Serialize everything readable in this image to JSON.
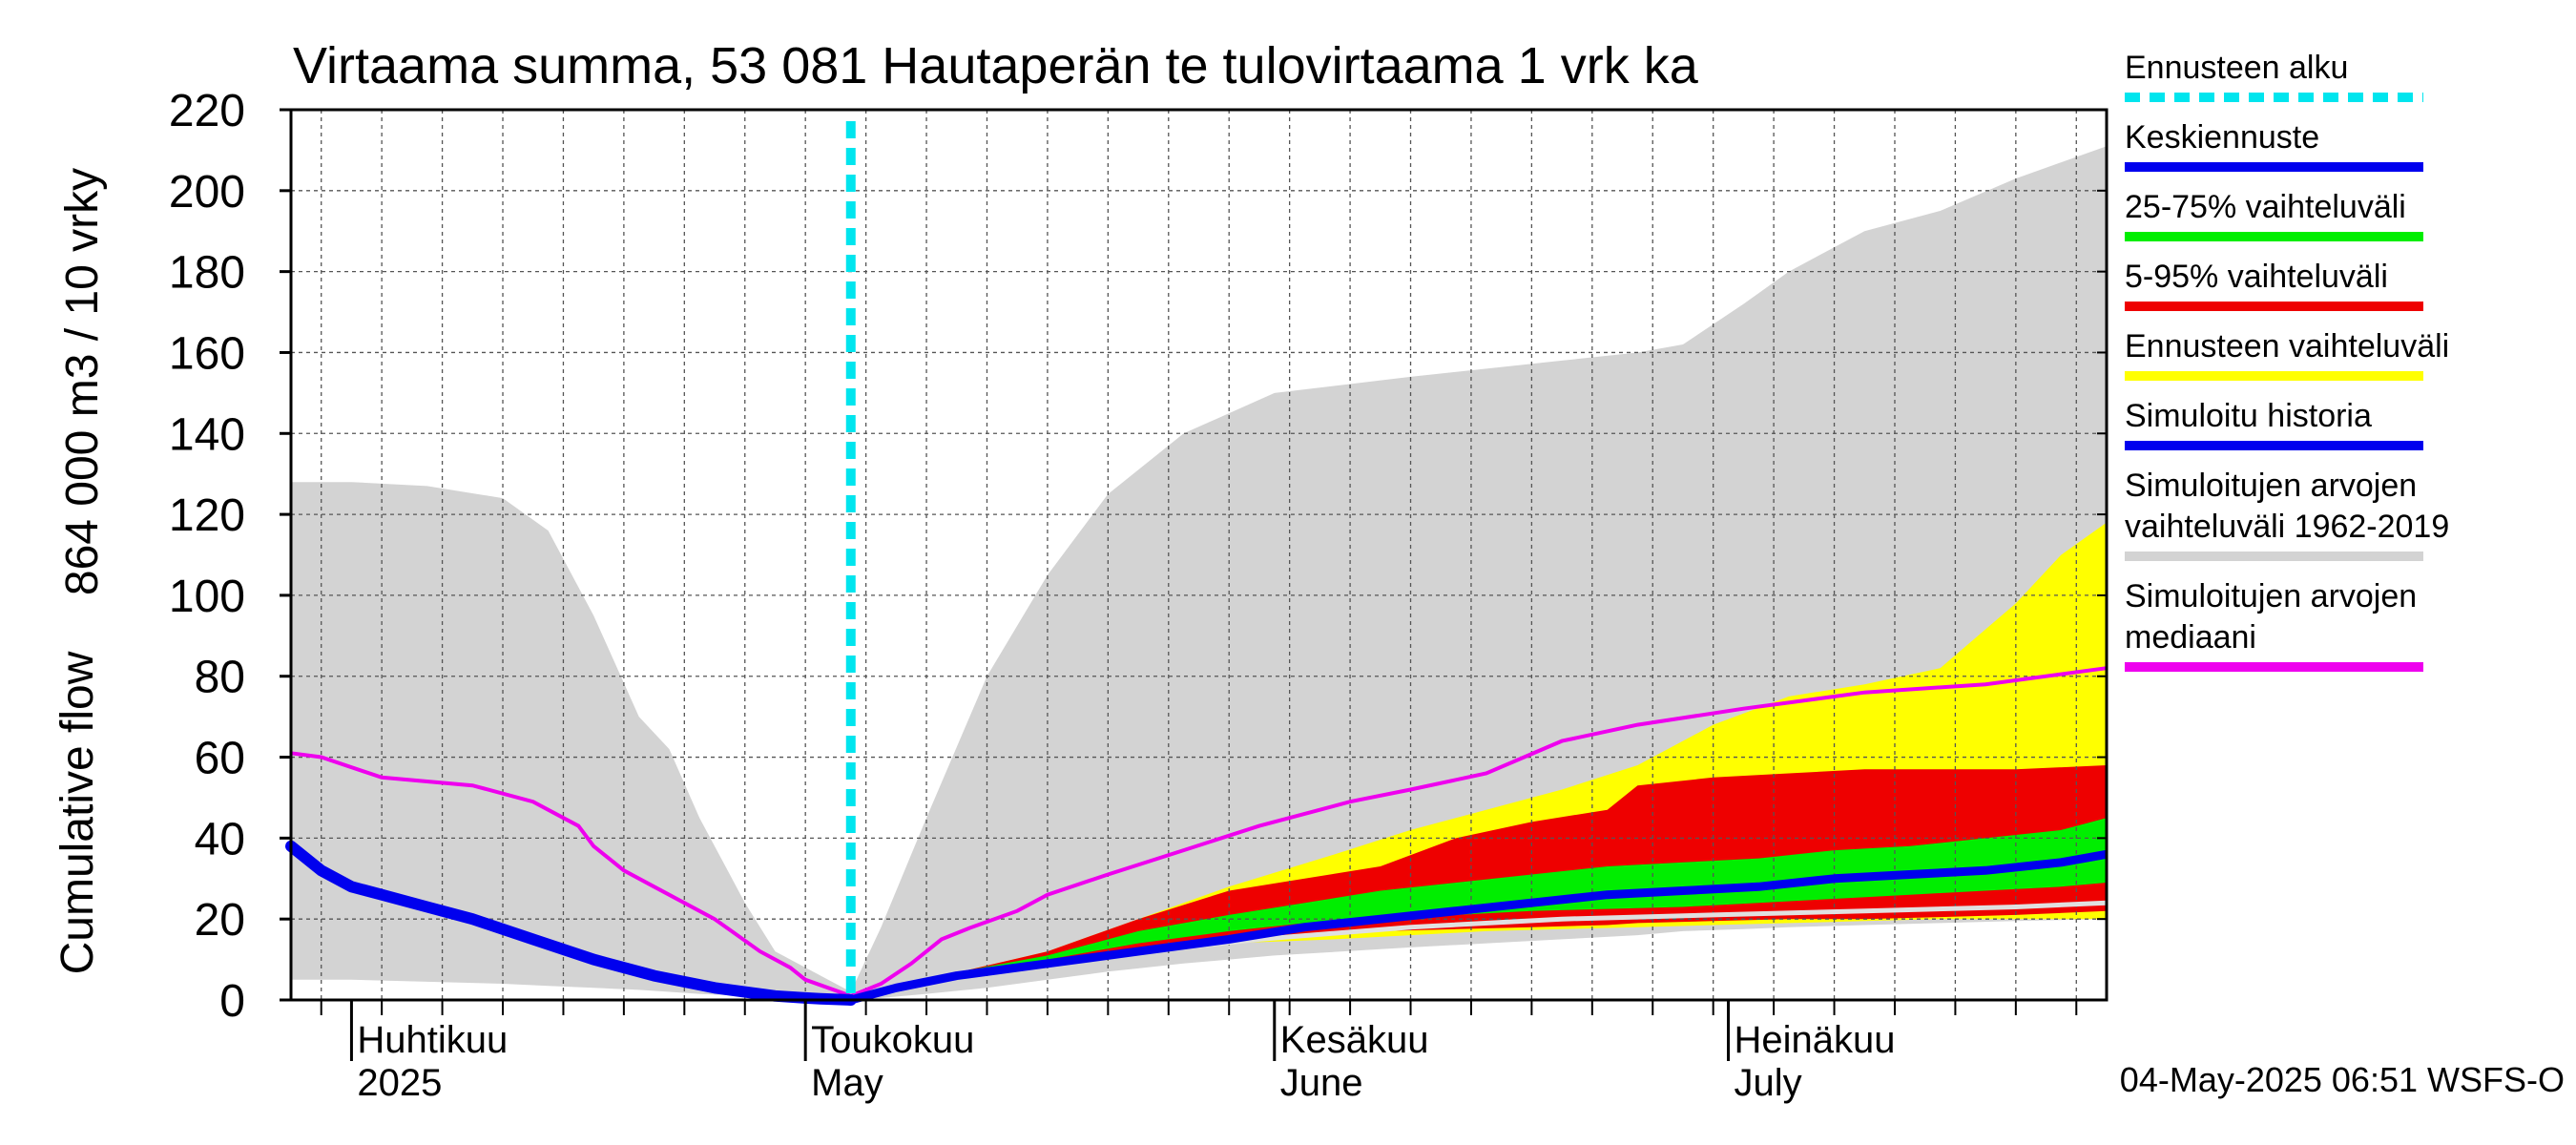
{
  "chart_data": {
    "type": "area",
    "title": "Virtaama summa, 53 081 Hautaperän te tulovirtaama 1 vrk ka",
    "ylabel_line1": "864 000 m3 / 10 vrky",
    "ylabel_line2": "Cumulative flow",
    "ylim": [
      0,
      220
    ],
    "yticks": [
      0,
      20,
      40,
      60,
      80,
      100,
      120,
      140,
      160,
      180,
      200,
      220
    ],
    "x_range_days": [
      -34,
      86
    ],
    "x_zero_date": "2025-05-01",
    "month_labels": [
      {
        "fi": "Huhtikuu",
        "en": "2025",
        "day": -30
      },
      {
        "fi": "Toukokuu",
        "en": "May",
        "day": 0
      },
      {
        "fi": "Kesäkuu",
        "en": "June",
        "day": 31
      },
      {
        "fi": "Heinäkuu",
        "en": "July",
        "day": 61
      }
    ],
    "forecast_start_day": 3,
    "grid": true,
    "timestamp": "04-May-2025 06:51 WSFS-O",
    "legend_position": "right",
    "colors": {
      "forecast_start": "#00e5ee",
      "median_forecast": "#0000ee",
      "range_25_75": "#00ee00",
      "range_5_95": "#ee0000",
      "forecast_range": "#ffff00",
      "simulated_history": "#0000ee",
      "historical_range": "#d3d3d3",
      "historical_median": "#ee00ee"
    },
    "legend": [
      {
        "label": "Ennusteen alku",
        "key": "forecast_start",
        "style": "dashed"
      },
      {
        "label": "Keskiennuste",
        "key": "median_forecast",
        "style": "solid"
      },
      {
        "label": "25-75% vaihteluväli",
        "key": "range_25_75",
        "style": "solid"
      },
      {
        "label": "5-95% vaihteluväli",
        "key": "range_5_95",
        "style": "solid"
      },
      {
        "label": "Ennusteen vaihteluväli",
        "key": "forecast_range",
        "style": "solid"
      },
      {
        "label": "Simuloitu historia",
        "key": "simulated_history",
        "style": "solid"
      },
      {
        "label": "Simuloitujen arvojen vaihteluväli 1962-2019",
        "key": "historical_range",
        "style": "solid"
      },
      {
        "label": "Simuloitujen arvojen mediaani",
        "key": "historical_median",
        "style": "solid"
      }
    ],
    "historical_range": {
      "x": [
        -34,
        -30,
        -25,
        -20,
        -17,
        -14,
        -11,
        -9,
        -7,
        -4,
        -2,
        3,
        5,
        8,
        12,
        16,
        20,
        25,
        31,
        40,
        50,
        55,
        58,
        62,
        65,
        70,
        75,
        80,
        86
      ],
      "upper": [
        128,
        128,
        127,
        124,
        116,
        95,
        70,
        62,
        45,
        24,
        12,
        2,
        18,
        45,
        80,
        105,
        125,
        140,
        150,
        154,
        158,
        160,
        162,
        172,
        180,
        190,
        195,
        203,
        211
      ],
      "lower": [
        5,
        5,
        4.5,
        4,
        3.5,
        3,
        2.5,
        2,
        1.5,
        1,
        0.5,
        0,
        0.5,
        1.5,
        3,
        5,
        7,
        9,
        11,
        13,
        15,
        16,
        17,
        17.5,
        18,
        18.5,
        19,
        19.5,
        20
      ]
    },
    "forecast_range": {
      "x": [
        3,
        8,
        16,
        22,
        28,
        35,
        40,
        45,
        50,
        55,
        60,
        65,
        70,
        75,
        80,
        83,
        86
      ],
      "upper": [
        0,
        5,
        12,
        20,
        28,
        36,
        42,
        47,
        52,
        58,
        68,
        75,
        78,
        82,
        98,
        110,
        118
      ],
      "lower": [
        0,
        4,
        9,
        12,
        14,
        15,
        16,
        17,
        17.5,
        18,
        18.5,
        19,
        19.5,
        20,
        20,
        20,
        20
      ]
    },
    "range_5_95": {
      "x": [
        3,
        8,
        16,
        22,
        28,
        33,
        38,
        43,
        48,
        53,
        55,
        60,
        65,
        70,
        75,
        80,
        86
      ],
      "upper": [
        0,
        5,
        12,
        20,
        27,
        30,
        33,
        40,
        44,
        47,
        53,
        55,
        56,
        57,
        57,
        57,
        58
      ],
      "lower": [
        0,
        4.5,
        10,
        13,
        15,
        16,
        17,
        17.5,
        18,
        18.5,
        19,
        19.5,
        20,
        20,
        20.5,
        21,
        22
      ]
    },
    "range_25_75": {
      "x": [
        3,
        8,
        16,
        22,
        28,
        33,
        38,
        43,
        48,
        53,
        58,
        63,
        68,
        73,
        78,
        83,
        86
      ],
      "upper": [
        0,
        5.5,
        11,
        17,
        21,
        24,
        27,
        29,
        31,
        33,
        34,
        35,
        37,
        38,
        40,
        42,
        45
      ],
      "lower": [
        0,
        5,
        10,
        14,
        17,
        19,
        20,
        21,
        22,
        22.5,
        23,
        24,
        25,
        26,
        27,
        28,
        29
      ]
    },
    "historical_median": {
      "x": [
        -34,
        -32,
        -28,
        -22,
        -18,
        -16,
        -15,
        -14,
        -12,
        -10,
        -6,
        -3,
        -1,
        0,
        3,
        5,
        7,
        9,
        11,
        14,
        16,
        20,
        25,
        30,
        36,
        40,
        45,
        50,
        55,
        62,
        70,
        78,
        86
      ],
      "y": [
        61,
        60,
        55,
        53,
        49,
        45,
        43,
        38,
        32,
        28,
        20,
        12,
        8,
        5,
        1,
        4,
        9,
        15,
        18,
        22,
        26,
        31,
        37,
        43,
        49,
        52,
        56,
        64,
        68,
        72,
        76,
        78,
        82
      ]
    },
    "simulated_history": {
      "x": [
        -34,
        -32,
        -30,
        -28,
        -25,
        -22,
        -18,
        -14,
        -10,
        -6,
        -2,
        0,
        1,
        3
      ],
      "y": [
        38,
        32,
        28,
        26,
        23,
        20,
        15,
        10,
        6,
        3,
        1,
        0.5,
        0.3,
        0
      ]
    },
    "median_forecast": {
      "x": [
        3,
        6,
        10,
        16,
        22,
        28,
        33,
        38,
        43,
        48,
        53,
        58,
        63,
        68,
        73,
        78,
        83,
        86
      ],
      "y": [
        0,
        3,
        6,
        9,
        12,
        15,
        18,
        20,
        22,
        24,
        26,
        27,
        28,
        30,
        31,
        32,
        34,
        36
      ]
    },
    "gray_line": {
      "x": [
        3,
        10,
        20,
        30,
        40,
        50,
        60,
        70,
        80,
        86
      ],
      "y": [
        0,
        6,
        11,
        15,
        18,
        20,
        21,
        22,
        23,
        24
      ]
    }
  }
}
